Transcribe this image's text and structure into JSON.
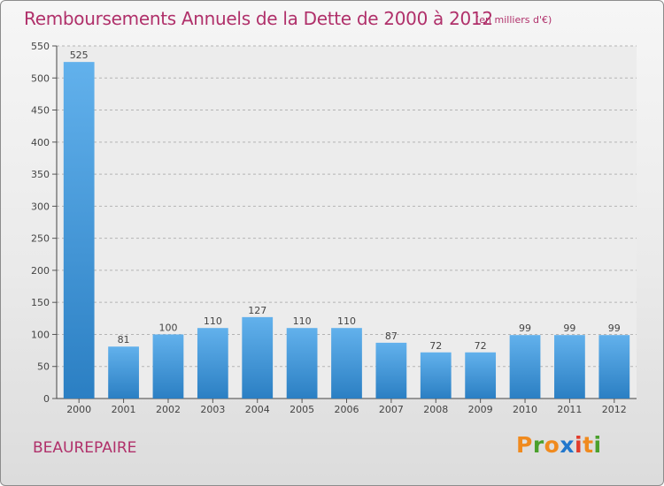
{
  "header": {
    "title": "Remboursements Annuels de la Dette de 2000 à 2012",
    "subtitle": "(en milliers d'€)"
  },
  "footer": {
    "city": "BEAUREPAIRE",
    "logo_letters": [
      "P",
      "r",
      "o",
      "x",
      "i",
      "t",
      "i"
    ],
    "logo_colors": [
      "#f08a1e",
      "#4aa02c",
      "#f08a1e",
      "#2277cc",
      "#e23c2c",
      "#f08a1e",
      "#4aa02c"
    ]
  },
  "colors": {
    "bar_top": "#62b1ec",
    "bar_bottom": "#2b7fc3",
    "title": "#b0306a"
  },
  "chart_data": {
    "type": "bar",
    "categories": [
      "2000",
      "2001",
      "2002",
      "2003",
      "2004",
      "2005",
      "2006",
      "2007",
      "2008",
      "2009",
      "2010",
      "2011",
      "2012"
    ],
    "values": [
      525,
      81,
      100,
      110,
      127,
      110,
      110,
      87,
      72,
      72,
      99,
      99,
      99
    ],
    "ylim": [
      0,
      550
    ],
    "yticks": [
      0,
      50,
      100,
      150,
      200,
      250,
      300,
      350,
      400,
      450,
      500,
      550
    ],
    "grid": true
  }
}
